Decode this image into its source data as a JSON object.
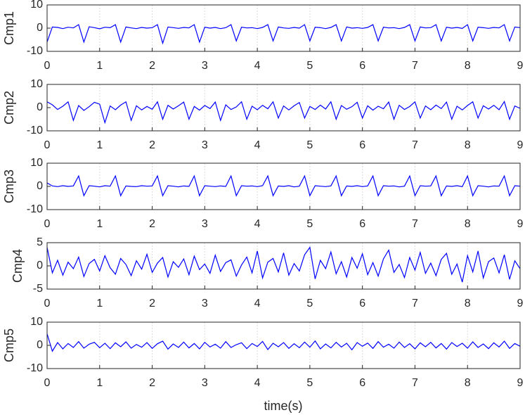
{
  "chart_data": {
    "type": "line",
    "xlabel": "time(s)",
    "x": [
      0,
      0.1,
      0.2,
      0.3,
      0.4,
      0.5,
      0.6,
      0.7,
      0.8,
      0.9,
      1,
      1.1,
      1.2,
      1.3,
      1.4,
      1.5,
      1.6,
      1.7,
      1.8,
      1.9,
      2,
      2.1,
      2.2,
      2.3,
      2.4,
      2.5,
      2.6,
      2.7,
      2.8,
      2.9,
      3,
      3.1,
      3.2,
      3.3,
      3.4,
      3.5,
      3.6,
      3.7,
      3.8,
      3.9,
      4,
      4.1,
      4.2,
      4.3,
      4.4,
      4.5,
      4.6,
      4.7,
      4.8,
      4.9,
      5,
      5.1,
      5.2,
      5.3,
      5.4,
      5.5,
      5.6,
      5.7,
      5.8,
      5.9,
      6,
      6.1,
      6.2,
      6.3,
      6.4,
      6.5,
      6.6,
      6.7,
      6.8,
      6.9,
      7,
      7.1,
      7.2,
      7.3,
      7.4,
      7.5,
      7.6,
      7.7,
      7.8,
      7.9,
      8,
      8.1,
      8.2,
      8.3,
      8.4,
      8.5,
      8.6,
      8.7,
      8.8,
      8.9,
      9
    ],
    "xlim": [
      0,
      9
    ],
    "xticks": [
      0,
      1,
      2,
      3,
      4,
      5,
      6,
      7,
      8,
      9
    ],
    "grid": true,
    "series": [
      {
        "name": "Cmp1",
        "color": "#0000ff",
        "ylim": [
          -10,
          10
        ],
        "yticks": [
          -10,
          0,
          10
        ],
        "values": [
          -6,
          0.5,
          0.3,
          -0.2,
          0.4,
          0.1,
          1.5,
          -6,
          0.6,
          0.2,
          -0.3,
          0.4,
          0.2,
          1.5,
          -6,
          0.5,
          0.1,
          -0.2,
          0.3,
          0,
          0.2,
          1.5,
          -6.5,
          0.5,
          0.2,
          -0.1,
          0.3,
          0.1,
          1.5,
          -6,
          0.4,
          0,
          0.3,
          -0.2,
          0.2,
          1.5,
          -5.5,
          0.4,
          0.1,
          0.2,
          -0.2,
          0.3,
          1.5,
          -5.5,
          0.5,
          0.1,
          -0.1,
          0.3,
          0,
          1.5,
          -5.5,
          0.4,
          0.2,
          -0.2,
          0.3,
          1.5,
          -5.5,
          0.5,
          0,
          0.2,
          -0.1,
          0.3,
          1.5,
          -5.5,
          0.4,
          0.1,
          0.2,
          -0.2,
          0.3,
          1.5,
          -5.5,
          0.5,
          0.1,
          0.2,
          1.5,
          -5.5,
          0.4,
          0,
          0.3,
          -0.1,
          1.5,
          -5.5,
          0.4,
          0.2,
          -0.1,
          0.3,
          0.1,
          1.5,
          -5.5,
          0.5,
          0.2
        ]
      },
      {
        "name": "Cmp2",
        "color": "#0000ff",
        "ylim": [
          -10,
          10
        ],
        "yticks": [
          -10,
          0,
          10
        ],
        "values": [
          2.5,
          1.2,
          -0.8,
          0.6,
          2.5,
          -5.5,
          0.9,
          -1.2,
          0.4,
          2.3,
          1.5,
          -6.5,
          0.7,
          -0.9,
          1.1,
          2.5,
          -5.5,
          0.8,
          -1,
          0.5,
          -0.7,
          2.5,
          -5,
          1,
          -0.6,
          0.8,
          2.4,
          -5,
          0.5,
          -1.1,
          0.9,
          -0.4,
          2.4,
          -5.5,
          1.2,
          -0.8,
          0.3,
          2.5,
          -5,
          0.6,
          -0.9,
          1,
          -0.5,
          2.5,
          -4.5,
          0.7,
          -1,
          0.8,
          2.2,
          -4.5,
          0.5,
          -0.8,
          1.1,
          -0.6,
          2.5,
          -5,
          0.9,
          -0.7,
          0.4,
          2.3,
          -4.5,
          0.8,
          -1.1,
          0.6,
          -0.5,
          2.4,
          -5,
          1,
          -0.8,
          0.5,
          2.5,
          -4.5,
          0.7,
          -0.9,
          1.1,
          -0.4,
          2.4,
          -5,
          0.6,
          -1,
          0.9,
          2.5,
          -4.5,
          0.8,
          -0.6,
          1,
          -0.9,
          2.6,
          -5,
          0.7,
          -0.3
        ]
      },
      {
        "name": "Cmp3",
        "color": "#0000ff",
        "ylim": [
          -10,
          10
        ],
        "yticks": [
          -10,
          0,
          10
        ],
        "values": [
          1.5,
          0.2,
          -0.1,
          0.3,
          0,
          0.2,
          4.5,
          -4,
          0.3,
          0.1,
          -0.2,
          0.3,
          0.1,
          4.5,
          -4,
          0.2,
          0,
          -0.1,
          0.3,
          0.1,
          0.2,
          4.5,
          -4,
          0.3,
          0.1,
          -0.2,
          0.2,
          0,
          4.5,
          -4,
          0.3,
          0.1,
          -0.1,
          0.2,
          0,
          4.5,
          -4,
          0.3,
          0.1,
          0.2,
          -0.1,
          0.3,
          4.5,
          -4,
          0.2,
          0,
          0.3,
          -0.2,
          0.1,
          4.5,
          -4,
          0.3,
          0.1,
          -0.1,
          0.2,
          4.5,
          -4,
          0.2,
          0,
          0.3,
          -0.1,
          0.2,
          4.5,
          -4,
          0.3,
          0.1,
          0.2,
          -0.2,
          0.1,
          4.5,
          -4,
          0.3,
          0.1,
          0.2,
          4.5,
          -4,
          0.2,
          0,
          0.3,
          -0.1,
          4.5,
          -4,
          0.3,
          0.1,
          -0.2,
          0.2,
          0.1,
          4.5,
          -4,
          0.3,
          0.1
        ]
      },
      {
        "name": "Cmp4",
        "color": "#0000ff",
        "ylim": [
          -5,
          5
        ],
        "yticks": [
          -5,
          0,
          5
        ],
        "values": [
          4,
          -1.5,
          1.2,
          -2,
          0.8,
          -0.6,
          1.9,
          -2.3,
          0.5,
          1.4,
          -1.1,
          2.2,
          -0.4,
          -1.8,
          1.6,
          0.3,
          -2.1,
          1.1,
          -0.7,
          2.5,
          -1.4,
          0.6,
          1.8,
          -2.4,
          0.9,
          -0.3,
          1.5,
          -1.9,
          2.1,
          -0.8,
          0.4,
          -1.6,
          2.3,
          -1.2,
          0.7,
          1.3,
          -2.2,
          0.2,
          1.9,
          -1.5,
          3.2,
          -2.6,
          0.8,
          1.6,
          -1.3,
          2.8,
          -2,
          0.5,
          -1.1,
          2.4,
          4,
          -2.8,
          1.2,
          -0.6,
          3,
          -1.7,
          0.9,
          -2.4,
          1.8,
          -0.5,
          2.6,
          -1.9,
          0.7,
          -2.2,
          1.5,
          3.4,
          -1.4,
          0.3,
          -2.5,
          1.8,
          -0.9,
          2.9,
          -1.6,
          0.6,
          -2.1,
          1.4,
          2.7,
          -1.8,
          0.4,
          -3.5,
          2.2,
          -1.3,
          3.2,
          -2.6,
          0.9,
          1.7,
          -1.5,
          2.4,
          -2.9,
          1.1,
          -0.6
        ]
      },
      {
        "name": "Cmp5",
        "color": "#0000ff",
        "ylim": [
          -10,
          10
        ],
        "yticks": [
          -10,
          0,
          10
        ],
        "values": [
          5,
          -2.5,
          1.2,
          -1.5,
          0.8,
          -0.9,
          1.6,
          -1.2,
          0.5,
          1.3,
          -1,
          0.9,
          -1.4,
          1.1,
          -0.6,
          1.5,
          -1.2,
          0.4,
          -0.8,
          1.2,
          -1.3,
          0.7,
          1.8,
          -1.6,
          0.6,
          -0.9,
          1.4,
          -1.1,
          0.8,
          -1.5,
          1.3,
          -0.7,
          0.5,
          -1.2,
          1.6,
          -0.9,
          0.3,
          1.1,
          -1.4,
          0.8,
          -0.5,
          1.7,
          -1.8,
          0.9,
          -0.6,
          1.2,
          -1.3,
          0.7,
          -1,
          1.4,
          -0.8,
          1.9,
          -1.5,
          0.6,
          -1.1,
          1.3,
          -0.7,
          0.9,
          -1.9,
          1.2,
          -0.4,
          1,
          -1.3,
          1.6,
          -0.8,
          0.5,
          -1.2,
          1.4,
          -0.9,
          0.7,
          -1.5,
          1.1,
          -0.6,
          1.3,
          -1.1,
          0.8,
          -1.6,
          1.2,
          -0.5,
          0.9,
          -1.2,
          1.5,
          -0.9,
          0.6,
          -1.4,
          1.1,
          -0.7,
          1.8,
          -1.3,
          0.8,
          -0.4
        ]
      }
    ]
  }
}
